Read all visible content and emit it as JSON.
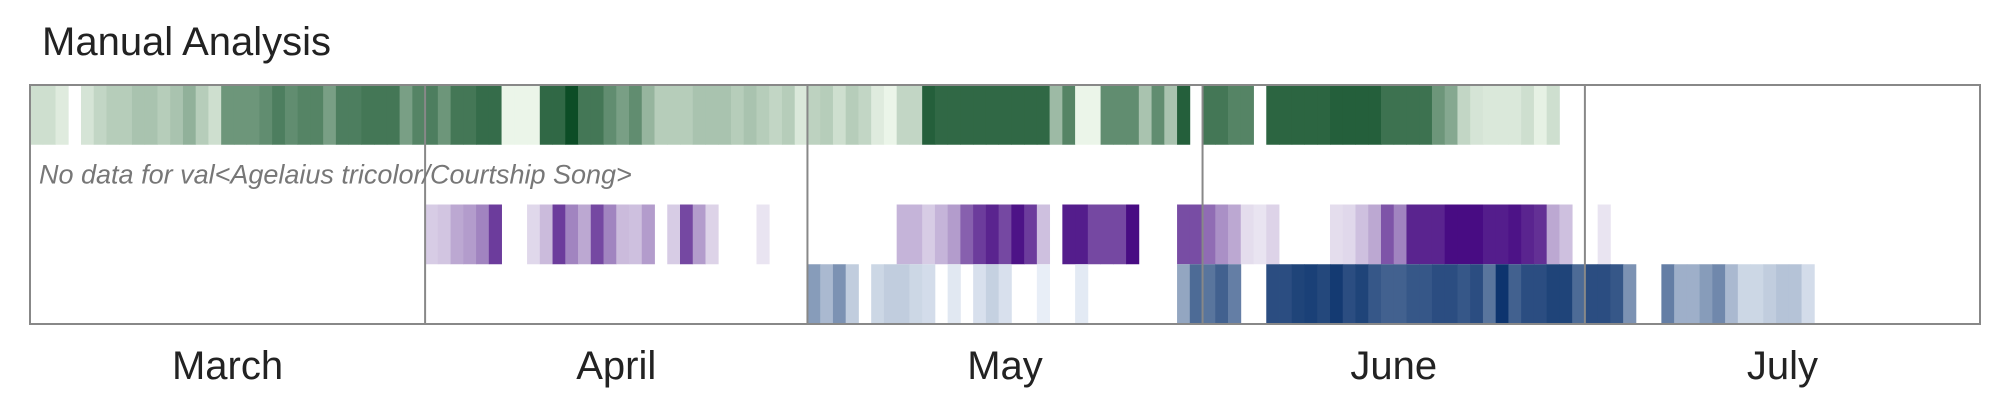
{
  "chart_data": {
    "type": "heatmap",
    "title": "Manual Analysis",
    "x_axis": {
      "start": "2023-03-01",
      "end": "2023-07-31",
      "tick_labels": [
        "March",
        "April",
        "May",
        "June",
        "July"
      ]
    },
    "dividers": [
      "2023-04-01",
      "2023-05-01",
      "2023-06-01",
      "2023-07-01"
    ],
    "notes": [
      {
        "row": 1,
        "text": "No data for val<Agelaius tricolor/Courtship Song>"
      }
    ],
    "rows": [
      {
        "palette": "greens",
        "colors": {
          "low": "#f2faef",
          "high": "#00441b"
        },
        "segments": [
          [
            "2023-03-01",
            0.15
          ],
          [
            "2023-03-02",
            0.15
          ],
          [
            "2023-03-03",
            0.08
          ],
          [
            "2023-03-05",
            0.12
          ],
          [
            "2023-03-06",
            0.2
          ],
          [
            "2023-03-07",
            0.25
          ],
          [
            "2023-03-08",
            0.25
          ],
          [
            "2023-03-09",
            0.3
          ],
          [
            "2023-03-10",
            0.3
          ],
          [
            "2023-03-11",
            0.25
          ],
          [
            "2023-03-12",
            0.3
          ],
          [
            "2023-03-13",
            0.4
          ],
          [
            "2023-03-14",
            0.25
          ],
          [
            "2023-03-15",
            0.15
          ],
          [
            "2023-03-16",
            0.55
          ],
          [
            "2023-03-17",
            0.55
          ],
          [
            "2023-03-18",
            0.55
          ],
          [
            "2023-03-19",
            0.6
          ],
          [
            "2023-03-20",
            0.68
          ],
          [
            "2023-03-21",
            0.6
          ],
          [
            "2023-03-22",
            0.65
          ],
          [
            "2023-03-23",
            0.65
          ],
          [
            "2023-03-24",
            0.5
          ],
          [
            "2023-03-25",
            0.68
          ],
          [
            "2023-03-26",
            0.68
          ],
          [
            "2023-03-27",
            0.72
          ],
          [
            "2023-03-28",
            0.72
          ],
          [
            "2023-03-29",
            0.72
          ],
          [
            "2023-03-30",
            0.5
          ],
          [
            "2023-03-31",
            0.65
          ],
          [
            "2023-04-01",
            0.68
          ],
          [
            "2023-04-02",
            0.55
          ],
          [
            "2023-04-03",
            0.72
          ],
          [
            "2023-04-04",
            0.72
          ],
          [
            "2023-04-05",
            0.78
          ],
          [
            "2023-04-06",
            0.78
          ],
          [
            "2023-04-07",
            0.03
          ],
          [
            "2023-04-08",
            0.03
          ],
          [
            "2023-04-09",
            0.03
          ],
          [
            "2023-04-10",
            0.8
          ],
          [
            "2023-04-11",
            0.8
          ],
          [
            "2023-04-12",
            0.95
          ],
          [
            "2023-04-13",
            0.72
          ],
          [
            "2023-04-14",
            0.72
          ],
          [
            "2023-04-15",
            0.6
          ],
          [
            "2023-04-16",
            0.5
          ],
          [
            "2023-04-17",
            0.6
          ],
          [
            "2023-04-18",
            0.38
          ],
          [
            "2023-04-19",
            0.25
          ],
          [
            "2023-04-20",
            0.25
          ],
          [
            "2023-04-21",
            0.25
          ],
          [
            "2023-04-22",
            0.3
          ],
          [
            "2023-04-23",
            0.3
          ],
          [
            "2023-04-24",
            0.3
          ],
          [
            "2023-04-25",
            0.25
          ],
          [
            "2023-04-26",
            0.3
          ],
          [
            "2023-04-27",
            0.25
          ],
          [
            "2023-04-28",
            0.2
          ],
          [
            "2023-04-29",
            0.25
          ],
          [
            "2023-04-30",
            0.1
          ],
          [
            "2023-05-01",
            0.22
          ],
          [
            "2023-05-02",
            0.25
          ],
          [
            "2023-05-03",
            0.15
          ],
          [
            "2023-05-04",
            0.25
          ],
          [
            "2023-05-05",
            0.2
          ],
          [
            "2023-05-06",
            0.08
          ],
          [
            "2023-05-07",
            0.03
          ],
          [
            "2023-05-08",
            0.2
          ],
          [
            "2023-05-09",
            0.2
          ],
          [
            "2023-05-10",
            0.85
          ],
          [
            "2023-05-11",
            0.8
          ],
          [
            "2023-05-12",
            0.8
          ],
          [
            "2023-05-13",
            0.8
          ],
          [
            "2023-05-14",
            0.8
          ],
          [
            "2023-05-15",
            0.8
          ],
          [
            "2023-05-16",
            0.8
          ],
          [
            "2023-05-17",
            0.8
          ],
          [
            "2023-05-18",
            0.8
          ],
          [
            "2023-05-19",
            0.8
          ],
          [
            "2023-05-20",
            0.35
          ],
          [
            "2023-05-21",
            0.65
          ],
          [
            "2023-05-22",
            0.03
          ],
          [
            "2023-05-23",
            0.03
          ],
          [
            "2023-05-24",
            0.6
          ],
          [
            "2023-05-25",
            0.6
          ],
          [
            "2023-05-26",
            0.6
          ],
          [
            "2023-05-27",
            0.3
          ],
          [
            "2023-05-28",
            0.6
          ],
          [
            "2023-05-29",
            0.3
          ],
          [
            "2023-05-30",
            0.85
          ],
          [
            "2023-06-01",
            0.72
          ],
          [
            "2023-06-02",
            0.72
          ],
          [
            "2023-06-03",
            0.65
          ],
          [
            "2023-06-04",
            0.65
          ],
          [
            "2023-06-06",
            0.82
          ],
          [
            "2023-06-07",
            0.82
          ],
          [
            "2023-06-08",
            0.82
          ],
          [
            "2023-06-09",
            0.82
          ],
          [
            "2023-06-10",
            0.82
          ],
          [
            "2023-06-11",
            0.85
          ],
          [
            "2023-06-12",
            0.85
          ],
          [
            "2023-06-13",
            0.85
          ],
          [
            "2023-06-14",
            0.85
          ],
          [
            "2023-06-15",
            0.75
          ],
          [
            "2023-06-16",
            0.75
          ],
          [
            "2023-06-17",
            0.75
          ],
          [
            "2023-06-18",
            0.75
          ],
          [
            "2023-06-19",
            0.55
          ],
          [
            "2023-06-20",
            0.45
          ],
          [
            "2023-06-21",
            0.2
          ],
          [
            "2023-06-22",
            0.12
          ],
          [
            "2023-06-23",
            0.1
          ],
          [
            "2023-06-24",
            0.1
          ],
          [
            "2023-06-25",
            0.1
          ],
          [
            "2023-06-26",
            0.15
          ],
          [
            "2023-06-27",
            0.05
          ],
          [
            "2023-06-28",
            0.15
          ]
        ]
      },
      {
        "palette": "none",
        "segments": []
      },
      {
        "palette": "purples",
        "colors": {
          "low": "#f2f0f7",
          "high": "#3f007d"
        },
        "segments": [
          [
            "2023-04-01",
            0.15
          ],
          [
            "2023-04-02",
            0.18
          ],
          [
            "2023-04-03",
            0.3
          ],
          [
            "2023-04-04",
            0.35
          ],
          [
            "2023-04-05",
            0.45
          ],
          [
            "2023-04-06",
            0.75
          ],
          [
            "2023-04-09",
            0.1
          ],
          [
            "2023-04-10",
            0.22
          ],
          [
            "2023-04-11",
            0.75
          ],
          [
            "2023-04-12",
            0.45
          ],
          [
            "2023-04-13",
            0.3
          ],
          [
            "2023-04-14",
            0.7
          ],
          [
            "2023-04-15",
            0.45
          ],
          [
            "2023-04-16",
            0.22
          ],
          [
            "2023-04-17",
            0.2
          ],
          [
            "2023-04-18",
            0.35
          ],
          [
            "2023-04-20",
            0.15
          ],
          [
            "2023-04-21",
            0.7
          ],
          [
            "2023-04-22",
            0.35
          ],
          [
            "2023-04-23",
            0.12
          ],
          [
            "2023-04-27",
            0.05
          ],
          [
            "2023-05-08",
            0.25
          ],
          [
            "2023-05-09",
            0.25
          ],
          [
            "2023-05-10",
            0.15
          ],
          [
            "2023-05-11",
            0.25
          ],
          [
            "2023-05-12",
            0.35
          ],
          [
            "2023-05-13",
            0.6
          ],
          [
            "2023-05-14",
            0.75
          ],
          [
            "2023-05-15",
            0.85
          ],
          [
            "2023-05-16",
            0.7
          ],
          [
            "2023-05-17",
            0.92
          ],
          [
            "2023-05-18",
            0.75
          ],
          [
            "2023-05-19",
            0.2
          ],
          [
            "2023-05-21",
            0.88
          ],
          [
            "2023-05-22",
            0.88
          ],
          [
            "2023-05-23",
            0.7
          ],
          [
            "2023-05-24",
            0.7
          ],
          [
            "2023-05-25",
            0.7
          ],
          [
            "2023-05-26",
            0.95
          ],
          [
            "2023-05-30",
            0.68
          ],
          [
            "2023-05-31",
            0.68
          ],
          [
            "2023-06-01",
            0.55
          ],
          [
            "2023-06-02",
            0.4
          ],
          [
            "2023-06-03",
            0.3
          ],
          [
            "2023-06-04",
            0.08
          ],
          [
            "2023-06-05",
            0.05
          ],
          [
            "2023-06-06",
            0.12
          ],
          [
            "2023-06-11",
            0.08
          ],
          [
            "2023-06-12",
            0.1
          ],
          [
            "2023-06-13",
            0.2
          ],
          [
            "2023-06-14",
            0.3
          ],
          [
            "2023-06-15",
            0.65
          ],
          [
            "2023-06-16",
            0.45
          ],
          [
            "2023-06-17",
            0.85
          ],
          [
            "2023-06-18",
            0.85
          ],
          [
            "2023-06-19",
            0.85
          ],
          [
            "2023-06-20",
            0.95
          ],
          [
            "2023-06-21",
            0.95
          ],
          [
            "2023-06-22",
            0.95
          ],
          [
            "2023-06-23",
            0.88
          ],
          [
            "2023-06-24",
            0.88
          ],
          [
            "2023-06-25",
            0.92
          ],
          [
            "2023-06-26",
            0.85
          ],
          [
            "2023-06-27",
            0.8
          ],
          [
            "2023-06-28",
            0.3
          ],
          [
            "2023-06-29",
            0.2
          ],
          [
            "2023-07-02",
            0.05
          ]
        ]
      },
      {
        "palette": "blues",
        "colors": {
          "low": "#eff4fb",
          "high": "#08306b"
        },
        "segments": [
          [
            "2023-05-01",
            0.45
          ],
          [
            "2023-05-02",
            0.3
          ],
          [
            "2023-05-03",
            0.5
          ],
          [
            "2023-05-04",
            0.2
          ],
          [
            "2023-05-06",
            0.15
          ],
          [
            "2023-05-07",
            0.2
          ],
          [
            "2023-05-08",
            0.2
          ],
          [
            "2023-05-09",
            0.15
          ],
          [
            "2023-05-10",
            0.12
          ],
          [
            "2023-05-12",
            0.06
          ],
          [
            "2023-05-14",
            0.1
          ],
          [
            "2023-05-15",
            0.18
          ],
          [
            "2023-05-16",
            0.1
          ],
          [
            "2023-05-19",
            0.03
          ],
          [
            "2023-05-22",
            0.05
          ],
          [
            "2023-05-30",
            0.4
          ],
          [
            "2023-05-31",
            0.7
          ],
          [
            "2023-06-01",
            0.65
          ],
          [
            "2023-06-02",
            0.75
          ],
          [
            "2023-06-03",
            0.6
          ],
          [
            "2023-06-06",
            0.85
          ],
          [
            "2023-06-07",
            0.85
          ],
          [
            "2023-06-08",
            0.9
          ],
          [
            "2023-06-09",
            0.92
          ],
          [
            "2023-06-10",
            0.88
          ],
          [
            "2023-06-11",
            0.95
          ],
          [
            "2023-06-12",
            0.85
          ],
          [
            "2023-06-13",
            0.9
          ],
          [
            "2023-06-14",
            0.8
          ],
          [
            "2023-06-15",
            0.75
          ],
          [
            "2023-06-16",
            0.75
          ],
          [
            "2023-06-17",
            0.8
          ],
          [
            "2023-06-18",
            0.8
          ],
          [
            "2023-06-19",
            0.85
          ],
          [
            "2023-06-20",
            0.85
          ],
          [
            "2023-06-21",
            0.8
          ],
          [
            "2023-06-22",
            0.85
          ],
          [
            "2023-06-23",
            0.65
          ],
          [
            "2023-06-24",
            0.98
          ],
          [
            "2023-06-25",
            0.75
          ],
          [
            "2023-06-26",
            0.85
          ],
          [
            "2023-06-27",
            0.85
          ],
          [
            "2023-06-28",
            0.9
          ],
          [
            "2023-06-29",
            0.9
          ],
          [
            "2023-06-30",
            0.7
          ],
          [
            "2023-07-01",
            0.85
          ],
          [
            "2023-07-02",
            0.85
          ],
          [
            "2023-07-03",
            0.8
          ],
          [
            "2023-07-04",
            0.5
          ],
          [
            "2023-07-07",
            0.6
          ],
          [
            "2023-07-08",
            0.35
          ],
          [
            "2023-07-09",
            0.35
          ],
          [
            "2023-07-10",
            0.45
          ],
          [
            "2023-07-11",
            0.55
          ],
          [
            "2023-07-12",
            0.3
          ],
          [
            "2023-07-13",
            0.15
          ],
          [
            "2023-07-14",
            0.15
          ],
          [
            "2023-07-15",
            0.2
          ],
          [
            "2023-07-16",
            0.25
          ],
          [
            "2023-07-17",
            0.25
          ],
          [
            "2023-07-18",
            0.12
          ]
        ]
      }
    ]
  }
}
